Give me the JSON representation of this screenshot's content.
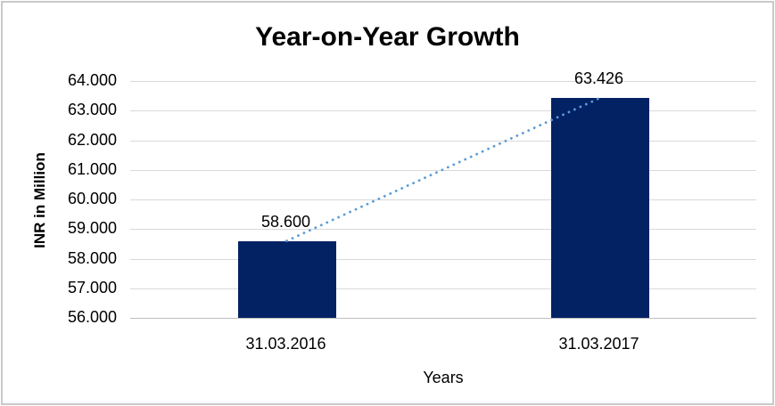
{
  "chart_data": {
    "type": "bar",
    "title": "Year-on-Year Growth",
    "xlabel": "Years",
    "ylabel": "INR in Million",
    "categories": [
      "31.03.2016",
      "31.03.2017"
    ],
    "series": [
      {
        "name": "INR in Million",
        "values": [
          58600,
          63426
        ]
      }
    ],
    "data_labels": [
      "58.600",
      "63.426"
    ],
    "ytick_labels": [
      "64.000",
      "63.000",
      "62.000",
      "61.000",
      "60.000",
      "59.000",
      "58.000",
      "57.000",
      "56.000"
    ],
    "ylim": [
      56000,
      64000
    ],
    "ytick_interval": 1000,
    "grid": true,
    "legend_position": "none",
    "trendline": {
      "style": "dotted",
      "from": 58600,
      "to": 63426
    },
    "colors": {
      "bar": "#032264",
      "trendline": "#5b9bd5",
      "gridline": "#d9d9d9",
      "axis_line": "#bfbfbf",
      "text": "#000000",
      "frame_border": "#c9c9c9",
      "background": "#ffffff"
    }
  }
}
